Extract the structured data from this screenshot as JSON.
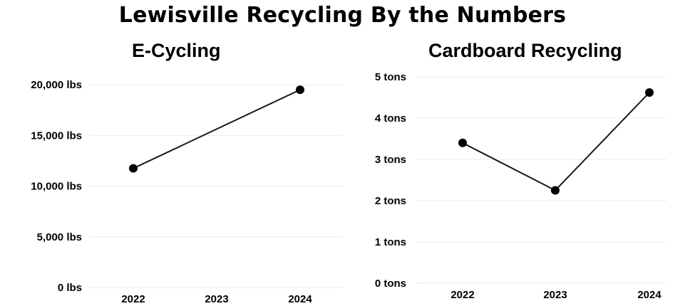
{
  "title": "Lewisville Recycling By the Numbers",
  "chart_data": [
    {
      "type": "line",
      "title": "E-Cycling",
      "categories": [
        "2022",
        "2023",
        "2024"
      ],
      "x": [
        "2022",
        "2024"
      ],
      "values": [
        11750,
        19500
      ],
      "ylim": [
        0,
        20000
      ],
      "yticks": [
        "0 lbs",
        "5,000 lbs",
        "10,000 lbs",
        "15,000 lbs",
        "20,000 lbs"
      ],
      "ytick_values": [
        0,
        5000,
        10000,
        15000,
        20000
      ],
      "grid": true,
      "xlabel": "",
      "ylabel": ""
    },
    {
      "type": "line",
      "title": "Cardboard Recycling",
      "categories": [
        "2022",
        "2023",
        "2024"
      ],
      "x": [
        "2022",
        "2023",
        "2024"
      ],
      "values": [
        3.4,
        2.25,
        4.62
      ],
      "ylim": [
        0,
        5
      ],
      "yticks": [
        "0 tons",
        "1 tons",
        "2 tons",
        "3 tons",
        "4 tons",
        "5 tons"
      ],
      "ytick_values": [
        0,
        1,
        2,
        3,
        4,
        5
      ],
      "grid": true,
      "xlabel": "",
      "ylabel": ""
    }
  ]
}
